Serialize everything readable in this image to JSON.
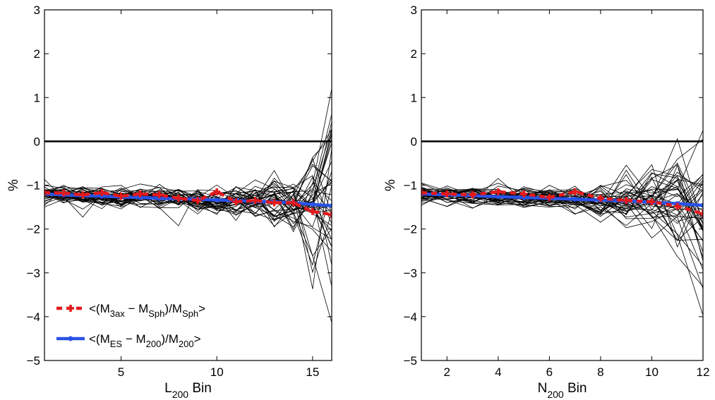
{
  "chart_data": [
    {
      "type": "line",
      "panel": "left",
      "xlabel": "L",
      "xlabel_sub": "200",
      "xlabel_suffix": " Bin",
      "ylabel": "%",
      "xlim": [
        1,
        16
      ],
      "ylim": [
        -5,
        3
      ],
      "xticks": [
        5,
        10,
        15
      ],
      "yticks": [
        -5,
        -4,
        -3,
        -2,
        -1,
        0,
        1,
        2,
        3
      ],
      "reference_line": 0,
      "series": [
        {
          "name": "<(M3ax − MSph)/MSph>",
          "style": "dashed-red",
          "color": "#e41a1c",
          "x": [
            1,
            2,
            3,
            4,
            5,
            6,
            7,
            8,
            9,
            10,
            11,
            12,
            13,
            14,
            15,
            16
          ],
          "values": [
            -1.17,
            -1.18,
            -1.22,
            -1.17,
            -1.25,
            -1.2,
            -1.22,
            -1.3,
            -1.35,
            -1.15,
            -1.38,
            -1.35,
            -1.4,
            -1.4,
            -1.6,
            -1.67
          ]
        },
        {
          "name": "<(MES − M200)/M200>",
          "style": "solid-blue",
          "color": "#2a52e6",
          "x": [
            1,
            2,
            3,
            4,
            5,
            6,
            7,
            8,
            9,
            10,
            11,
            12,
            13,
            14,
            15,
            16
          ],
          "values": [
            -1.2,
            -1.22,
            -1.24,
            -1.25,
            -1.27,
            -1.28,
            -1.3,
            -1.31,
            -1.32,
            -1.34,
            -1.35,
            -1.37,
            -1.38,
            -1.4,
            -1.44,
            -1.47
          ]
        }
      ],
      "ensemble": {
        "count": 40,
        "color": "#000000",
        "description": "individual realizations scattered around the mean, spread widening at high bins"
      },
      "legend": {
        "placement": "bottom-left",
        "entries": [
          {
            "text_parts": [
              "<(M",
              "3ax",
              " − M",
              "Sph",
              ")/M",
              "Sph",
              ">"
            ],
            "color": "#e41a1c",
            "style": "dashed"
          },
          {
            "text_parts": [
              "<(M",
              "ES",
              " − M",
              "200",
              ")/M",
              "200",
              ">"
            ],
            "color": "#2a52e6",
            "style": "solid"
          }
        ]
      }
    },
    {
      "type": "line",
      "panel": "right",
      "xlabel": "N",
      "xlabel_sub": "200",
      "xlabel_suffix": " Bin",
      "ylabel": "%",
      "xlim": [
        1,
        12
      ],
      "ylim": [
        -5,
        3
      ],
      "xticks": [
        2,
        4,
        6,
        8,
        10,
        12
      ],
      "yticks": [
        -5,
        -4,
        -3,
        -2,
        -1,
        0,
        1,
        2,
        3
      ],
      "reference_line": 0,
      "series": [
        {
          "name": "<(M3ax − MSph)/MSph>",
          "style": "dashed-red",
          "color": "#e41a1c",
          "x": [
            1,
            2,
            3,
            4,
            5,
            6,
            7,
            8,
            9,
            10,
            11,
            12
          ],
          "values": [
            -1.17,
            -1.2,
            -1.22,
            -1.15,
            -1.2,
            -1.28,
            -1.15,
            -1.3,
            -1.35,
            -1.38,
            -1.48,
            -1.65
          ]
        },
        {
          "name": "<(MES − M200)/M200>",
          "style": "solid-blue",
          "color": "#2a52e6",
          "x": [
            1,
            2,
            3,
            4,
            5,
            6,
            7,
            8,
            9,
            10,
            11,
            12
          ],
          "values": [
            -1.2,
            -1.22,
            -1.24,
            -1.26,
            -1.28,
            -1.3,
            -1.32,
            -1.34,
            -1.36,
            -1.39,
            -1.42,
            -1.46
          ]
        }
      ],
      "ensemble": {
        "count": 40,
        "color": "#000000",
        "description": "individual realizations scattered around the mean, spread widening at high bins"
      }
    }
  ]
}
